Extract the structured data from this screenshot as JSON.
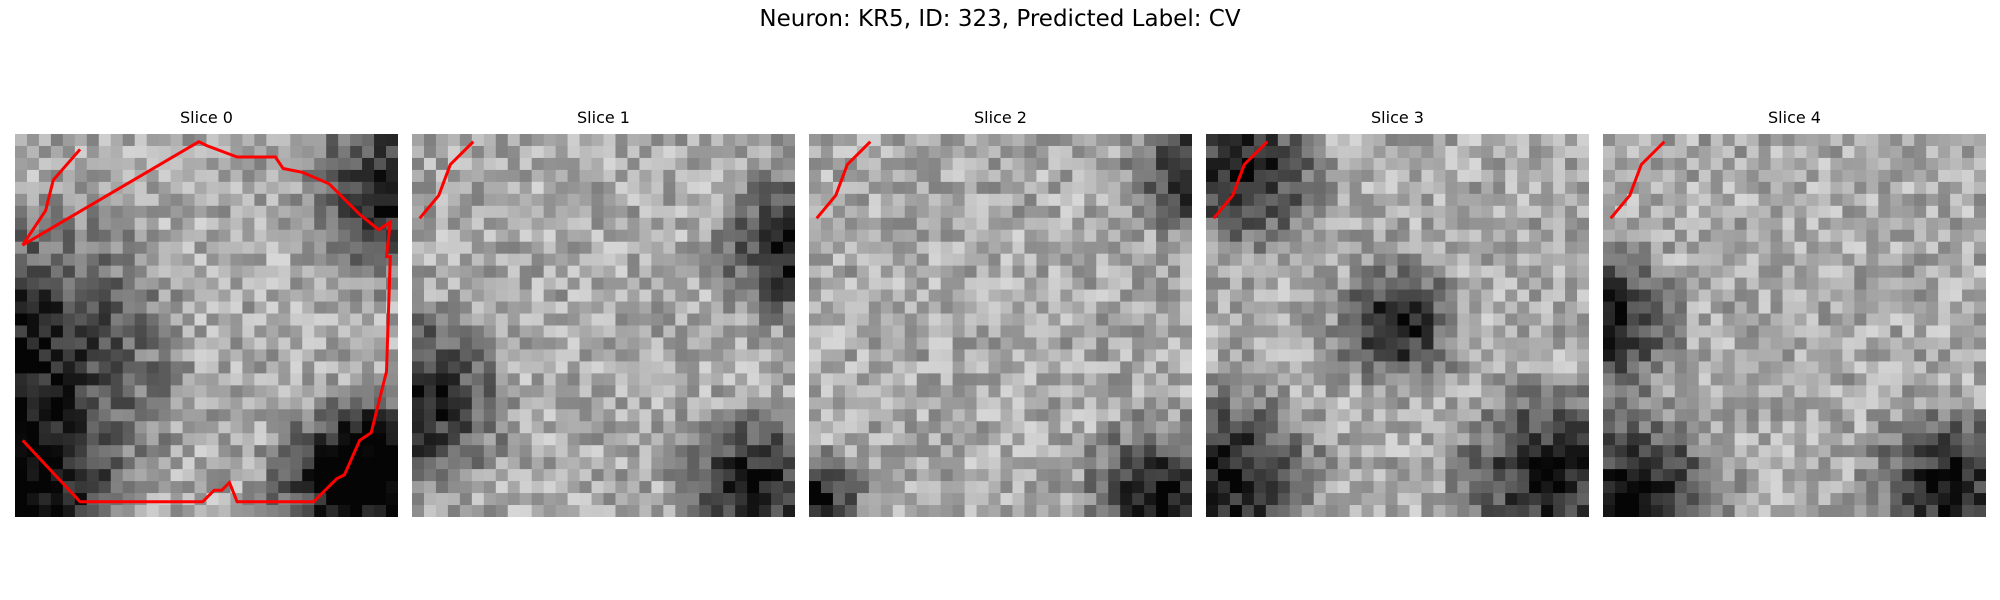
{
  "figure": {
    "title": "Neuron: KR5, ID: 323, Predicted Label: CV"
  },
  "panels": [
    {
      "title": "Slice 0",
      "seed": 11,
      "dark": [
        [
          0,
          0.6,
          0.5
        ],
        [
          0.85,
          0.92,
          0.25
        ],
        [
          0,
          1,
          0.35
        ],
        [
          1,
          0.15,
          0.3
        ],
        [
          1,
          0.85,
          0.25
        ]
      ],
      "contour": [
        [
          0.17,
          0.04
        ],
        [
          0.1,
          0.12
        ],
        [
          0.08,
          0.2
        ],
        [
          0.04,
          0.26
        ],
        [
          0.02,
          0.29
        ],
        [
          0.48,
          0.02
        ],
        [
          0.5,
          0.03
        ],
        [
          0.58,
          0.06
        ],
        [
          0.68,
          0.06
        ],
        [
          0.7,
          0.09
        ],
        [
          0.75,
          0.1
        ],
        [
          0.82,
          0.13
        ],
        [
          0.9,
          0.21
        ],
        [
          0.95,
          0.25
        ],
        [
          0.98,
          0.23
        ],
        [
          0.97,
          0.32
        ],
        [
          0.98,
          0.32
        ],
        [
          0.97,
          0.62
        ],
        [
          0.95,
          0.7
        ],
        [
          0.93,
          0.78
        ],
        [
          0.9,
          0.8
        ],
        [
          0.86,
          0.89
        ],
        [
          0.84,
          0.9
        ],
        [
          0.78,
          0.96
        ],
        [
          0.58,
          0.96
        ],
        [
          0.56,
          0.91
        ],
        [
          0.54,
          0.93
        ],
        [
          0.52,
          0.93
        ],
        [
          0.49,
          0.96
        ],
        [
          0.34,
          0.96
        ],
        [
          0.17,
          0.96
        ],
        [
          0.02,
          0.8
        ]
      ]
    },
    {
      "title": "Slice 1",
      "seed": 23,
      "dark": [
        [
          0.9,
          0.92,
          0.25
        ],
        [
          0,
          0.7,
          0.3
        ],
        [
          1,
          0.3,
          0.25
        ]
      ],
      "contour": []
    },
    {
      "title": "Slice 2",
      "seed": 37,
      "dark": [
        [
          0.92,
          0.95,
          0.25
        ],
        [
          1,
          0.1,
          0.2
        ],
        [
          0.02,
          0.95,
          0.15
        ]
      ],
      "contour": []
    },
    {
      "title": "Slice 3",
      "seed": 51,
      "dark": [
        [
          0.9,
          0.9,
          0.3
        ],
        [
          0.05,
          0.9,
          0.3
        ],
        [
          0.5,
          0.5,
          0.2
        ],
        [
          0.1,
          0.1,
          0.25
        ]
      ],
      "contour": []
    },
    {
      "title": "Slice 4",
      "seed": 67,
      "dark": [
        [
          0.9,
          0.92,
          0.25
        ],
        [
          0.08,
          0.95,
          0.3
        ],
        [
          0,
          0.5,
          0.25
        ]
      ],
      "contour": []
    }
  ]
}
